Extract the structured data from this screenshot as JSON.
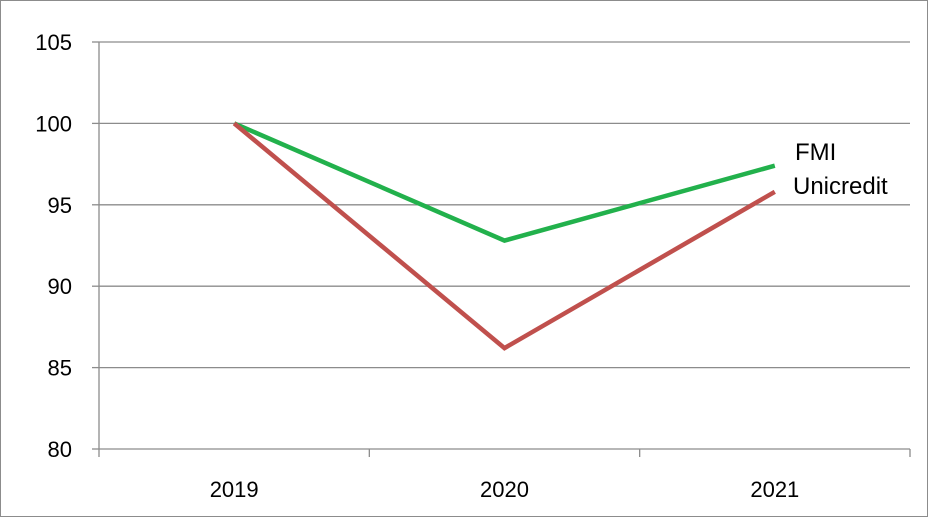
{
  "chart_data": {
    "type": "line",
    "title": "",
    "xlabel": "",
    "ylabel": "",
    "categories": [
      "2019",
      "2020",
      "2021"
    ],
    "ylim": [
      80,
      105
    ],
    "yticks": [
      "80",
      "85",
      "90",
      "95",
      "100",
      "105"
    ],
    "grid": true,
    "legend_placement": "right, labels at line ends",
    "series": [
      {
        "name": "FMI",
        "values": [
          100,
          92.8,
          97.4
        ],
        "color": "#22b14c"
      },
      {
        "name": "Unicredit",
        "values": [
          100,
          86.2,
          95.8
        ],
        "color": "#c0504d"
      }
    ]
  }
}
